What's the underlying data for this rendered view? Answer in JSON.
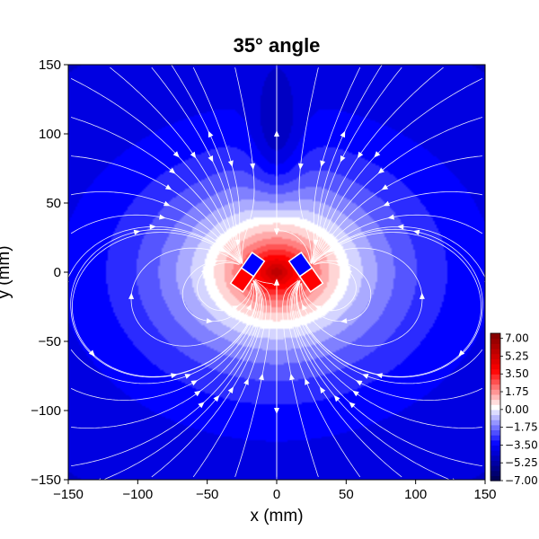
{
  "chart_data": {
    "type": "heatmap",
    "title": "35° angle",
    "xlabel": "x (mm)",
    "ylabel": "y (mm)",
    "xlim": [
      -150,
      150
    ],
    "ylim": [
      -150,
      150
    ],
    "x_ticks": [
      -150,
      -100,
      -50,
      0,
      50,
      100,
      150
    ],
    "x_tick_labels": [
      "−150",
      "−100",
      "−50",
      "0",
      "50",
      "100",
      "150"
    ],
    "y_ticks": [
      -150,
      -100,
      -50,
      0,
      50,
      100,
      150
    ],
    "y_tick_labels": [
      "−150",
      "−100",
      "−50",
      "0",
      "50",
      "100",
      "150"
    ],
    "colorbar": {
      "colormap": "seismic",
      "range": [
        -7.0,
        7.5
      ],
      "ticks": [
        7.0,
        5.25,
        3.5,
        1.75,
        0.0,
        -1.75,
        -3.5,
        -5.25,
        -7.0
      ],
      "tick_labels": [
        "7.00",
        "5.25",
        "3.50",
        "1.75",
        "0.00",
        "−1.75",
        "−3.50",
        "−5.25",
        "−7.00"
      ]
    },
    "magnets": [
      {
        "center": [
          -21,
          0
        ],
        "angle_deg": 35,
        "width": 8,
        "height": 20
      },
      {
        "center": [
          21,
          0
        ],
        "angle_deg": -35,
        "width": 8,
        "height": 20
      }
    ],
    "colors": {
      "positive": "#ff0000",
      "zero": "#ffffff",
      "negative": "#0000ff",
      "streamlines": "#ffffff"
    },
    "grid": false,
    "streamlines": true
  }
}
